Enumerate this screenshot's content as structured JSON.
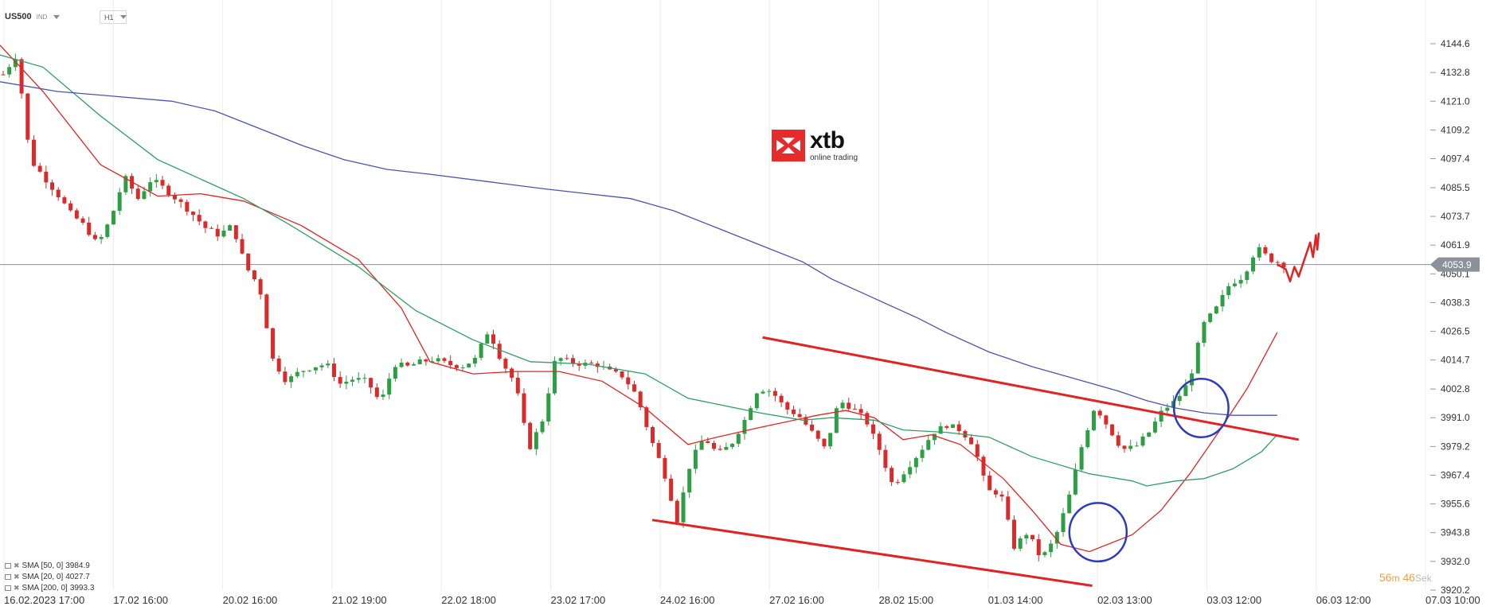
{
  "header": {
    "symbol": "US500",
    "symbol_type": "IND",
    "timeframe": "H1"
  },
  "logo": {
    "name": "xtb",
    "tagline": "online trading"
  },
  "legend": [
    {
      "label": "SMA [50, 0]",
      "value": "3984.9",
      "color": "#2e9e63"
    },
    {
      "label": "SMA [20, 0]",
      "value": "4027.7",
      "color": "#e02424"
    },
    {
      "label": "SMA [200, 0]",
      "value": "3993.3",
      "color": "#4a55a8"
    }
  ],
  "countdown": {
    "minutes": "56",
    "m_label": "m",
    "seconds": "46",
    "s_label": "Sek"
  },
  "chart_data": {
    "type": "candlestick",
    "instrument": "US500",
    "timeframe": "H1",
    "y_ticks": [
      "4144.6",
      "4132.8",
      "4121.0",
      "4109.2",
      "4097.4",
      "4085.5",
      "4073.7",
      "4061.9",
      "4050.1",
      "4038.3",
      "4026.5",
      "4014.7",
      "4002.8",
      "3991.0",
      "3979.2",
      "3967.4",
      "3955.6",
      "3943.8",
      "3932.0",
      "3920.2"
    ],
    "ylim": [
      3920.2,
      4144.6
    ],
    "x_ticks": [
      "16.02.2023   17:00",
      "17.02   16:00",
      "20.02   16:00",
      "21.02   19:00",
      "22.02   18:00",
      "23.02   17:00",
      "24.02   16:00",
      "27.02   16:00",
      "28.02   15:00",
      "01.03   14:00",
      "02.03   13:00",
      "03.03   12:00",
      "06.03   12:00",
      "07.03   10:00"
    ],
    "current_price": "4053.9",
    "price_path": [
      [
        4132,
        4140
      ],
      [
        4097,
        4090
      ],
      [
        4083,
        4075
      ],
      [
        4070,
        4062
      ],
      [
        4073,
        4090
      ],
      [
        4081,
        4089
      ],
      [
        4085,
        4080
      ],
      [
        4075,
        4069
      ],
      [
        4066,
        4070
      ],
      [
        4053,
        4045
      ],
      [
        4015,
        4006
      ],
      [
        4010,
        4012
      ],
      [
        4013,
        4005
      ],
      [
        4007,
        4006
      ],
      [
        3997,
        4013
      ],
      [
        4012,
        4014
      ],
      [
        4015,
        4013
      ],
      [
        4012,
        4015
      ],
      [
        4027,
        4014
      ],
      [
        4005,
        3978
      ],
      [
        3990,
        4016
      ],
      [
        4014,
        4013
      ],
      [
        4013,
        4010
      ],
      [
        4008,
        4000
      ],
      [
        3983,
        3969
      ],
      [
        3949,
        3973
      ],
      [
        3983,
        3976
      ],
      [
        3980,
        3990
      ],
      [
        4003,
        4002
      ],
      [
        3995,
        3992
      ],
      [
        3985,
        3978
      ],
      [
        3998,
        3995
      ],
      [
        3990,
        3978
      ],
      [
        3963,
        3970
      ],
      [
        3977,
        3985
      ],
      [
        3988,
        3986
      ],
      [
        3980,
        3961
      ],
      [
        3960,
        3938
      ],
      [
        3944,
        3933
      ],
      [
        3941,
        3957
      ],
      [
        3979,
        3996
      ],
      [
        3987,
        3978
      ],
      [
        3979,
        3985
      ],
      [
        3994,
        3998
      ],
      [
        4006,
        4029
      ],
      [
        4036,
        4046
      ],
      [
        4049,
        4061
      ],
      [
        4056,
        4054
      ]
    ],
    "series": [
      {
        "name": "SMA [20, 0]",
        "color": "#e02424",
        "points": [
          [
            4144,
            0
          ],
          [
            4125,
            0.03
          ],
          [
            4095,
            0.07
          ],
          [
            4082,
            0.11
          ],
          [
            4083,
            0.14
          ],
          [
            4080,
            0.17
          ],
          [
            4070,
            0.21
          ],
          [
            4056,
            0.25
          ],
          [
            4036,
            0.28
          ],
          [
            4014,
            0.3
          ],
          [
            4009,
            0.33
          ],
          [
            4010,
            0.36
          ],
          [
            4010,
            0.39
          ],
          [
            4006,
            0.42
          ],
          [
            3995,
            0.45
          ],
          [
            3980,
            0.48
          ],
          [
            3983,
            0.5
          ],
          [
            3987,
            0.53
          ],
          [
            3992,
            0.57
          ],
          [
            3994,
            0.59
          ],
          [
            3991,
            0.61
          ],
          [
            3982,
            0.63
          ],
          [
            3984,
            0.65
          ],
          [
            3980,
            0.67
          ],
          [
            3966,
            0.7
          ],
          [
            3953,
            0.72
          ],
          [
            3939,
            0.74
          ],
          [
            3936,
            0.76
          ],
          [
            3943,
            0.79
          ],
          [
            3953,
            0.81
          ],
          [
            3968,
            0.83
          ],
          [
            3985,
            0.85
          ],
          [
            4003,
            0.87
          ],
          [
            4026,
            0.891
          ]
        ]
      },
      {
        "name": "SMA [50, 0]",
        "color": "#2e9e63",
        "points": [
          [
            4140,
            0
          ],
          [
            4135,
            0.03
          ],
          [
            4115,
            0.07
          ],
          [
            4097,
            0.11
          ],
          [
            4089,
            0.14
          ],
          [
            4081,
            0.17
          ],
          [
            4071,
            0.2
          ],
          [
            4053,
            0.25
          ],
          [
            4035,
            0.29
          ],
          [
            4023,
            0.33
          ],
          [
            4014,
            0.37
          ],
          [
            4013,
            0.41
          ],
          [
            4009,
            0.45
          ],
          [
            3999,
            0.48
          ],
          [
            3993,
            0.53
          ],
          [
            3990,
            0.56
          ],
          [
            3991,
            0.58
          ],
          [
            3990,
            0.61
          ],
          [
            3986,
            0.63
          ],
          [
            3985,
            0.66
          ],
          [
            3983,
            0.69
          ],
          [
            3975,
            0.72
          ],
          [
            3968,
            0.76
          ],
          [
            3965,
            0.79
          ],
          [
            3963,
            0.8
          ],
          [
            3965,
            0.82
          ],
          [
            3966,
            0.84
          ],
          [
            3970,
            0.86
          ],
          [
            3977,
            0.88
          ],
          [
            3984,
            0.891
          ]
        ]
      },
      {
        "name": "SMA [200, 0]",
        "color": "#4a55a8",
        "points": [
          [
            4129,
            0
          ],
          [
            4125,
            0.04
          ],
          [
            4123,
            0.08
          ],
          [
            4121,
            0.12
          ],
          [
            4117,
            0.15
          ],
          [
            4110,
            0.18
          ],
          [
            4103,
            0.21
          ],
          [
            4097,
            0.24
          ],
          [
            4093,
            0.27
          ],
          [
            4091,
            0.3
          ],
          [
            4088,
            0.34
          ],
          [
            4085,
            0.38
          ],
          [
            4083,
            0.41
          ],
          [
            4081,
            0.44
          ],
          [
            4076,
            0.47
          ],
          [
            4069,
            0.5
          ],
          [
            4062,
            0.53
          ],
          [
            4055,
            0.56
          ],
          [
            4048,
            0.58
          ],
          [
            4040,
            0.61
          ],
          [
            4032,
            0.64
          ],
          [
            4026,
            0.66
          ],
          [
            4018,
            0.69
          ],
          [
            4012,
            0.72
          ],
          [
            4007,
            0.75
          ],
          [
            4002,
            0.78
          ],
          [
            3998,
            0.8
          ],
          [
            3995,
            0.82
          ],
          [
            3993,
            0.84
          ],
          [
            3992,
            0.86
          ],
          [
            3992,
            0.88
          ],
          [
            3992,
            0.891
          ]
        ]
      }
    ],
    "annotations": [
      {
        "type": "trendline",
        "color": "#e02424",
        "from": [
          0.532,
          4024
        ],
        "to": [
          0.906,
          3982
        ]
      },
      {
        "type": "trendline",
        "color": "#e02424",
        "from": [
          0.455,
          3949
        ],
        "to": [
          0.762,
          3922
        ]
      },
      {
        "type": "circle",
        "color": "#2e3bbf",
        "center": [
          0.838,
          3995
        ],
        "r_x": 0.019,
        "r_y": 12
      },
      {
        "type": "circle",
        "color": "#2e3bbf",
        "center": [
          0.766,
          3944
        ],
        "r_x": 0.02,
        "r_y": 12
      },
      {
        "type": "projection",
        "color": "#e02424",
        "points": [
          [
            0.891,
            4054
          ],
          [
            0.897,
            4052
          ],
          [
            0.9,
            4047
          ],
          [
            0.903,
            4053
          ],
          [
            0.906,
            4049
          ],
          [
            0.91,
            4056
          ],
          [
            0.914,
            4063
          ],
          [
            0.916,
            4057
          ],
          [
            0.918,
            4066
          ],
          [
            0.919,
            4060
          ],
          [
            0.92,
            4067
          ]
        ]
      }
    ]
  }
}
